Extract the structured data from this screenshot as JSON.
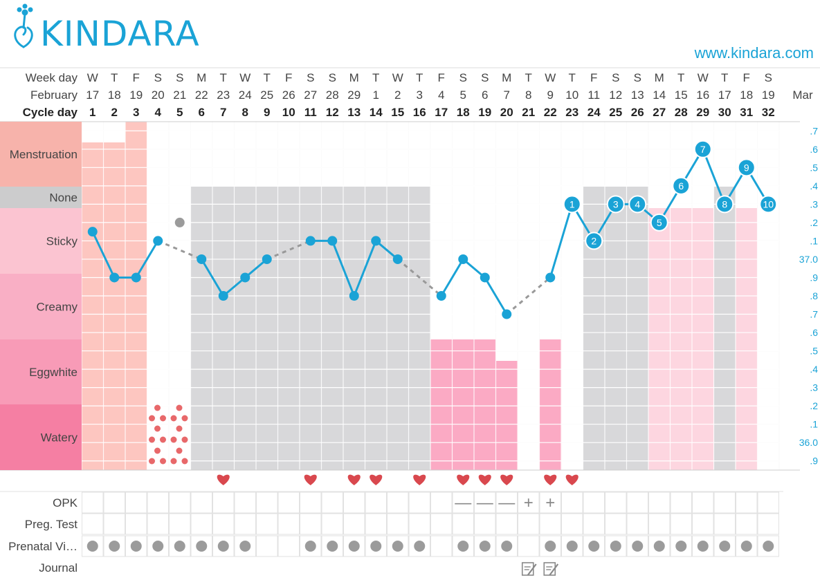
{
  "brand": {
    "name": "KINDARA",
    "url": "www.kindara.com",
    "color": "#1aa3d6"
  },
  "colors": {
    "temp_line": "#1aa3d6",
    "gray_band": "#d8d8da",
    "menstruation": "#fdc6c0",
    "fluid_pink": "#fbaac4",
    "light_pink": "#fdd6e0",
    "spotting": "#e8686a",
    "heart": "#d9484e",
    "pill_dot": "#9b9b9b"
  },
  "header": {
    "week_day_label": "Week day",
    "month_label": "February",
    "cycle_day_label": "Cycle day",
    "next_month_label": "Mar"
  },
  "rows": {
    "fluid_levels": [
      "Menstruation",
      "None",
      "Sticky",
      "Creamy",
      "Eggwhite",
      "Watery"
    ],
    "opk_label": "OPK",
    "preg_label": "Preg. Test",
    "prenatal_label": "Prenatal Vi…",
    "journal_label": "Journal"
  },
  "chart_data": {
    "type": "line",
    "week_days": [
      "W",
      "T",
      "F",
      "S",
      "S",
      "M",
      "T",
      "W",
      "T",
      "F",
      "S",
      "S",
      "M",
      "T",
      "W",
      "T",
      "F",
      "S",
      "S",
      "M",
      "T",
      "W",
      "T",
      "F",
      "S",
      "S",
      "M",
      "T",
      "W",
      "T",
      "F",
      "S"
    ],
    "dates": [
      "17",
      "18",
      "19",
      "20",
      "21",
      "22",
      "23",
      "24",
      "25",
      "26",
      "27",
      "28",
      "29",
      "1",
      "2",
      "3",
      "4",
      "5",
      "6",
      "7",
      "8",
      "9",
      "10",
      "11",
      "12",
      "13",
      "14",
      "15",
      "16",
      "17",
      "18",
      "19"
    ],
    "cycle_days": [
      "1",
      "2",
      "3",
      "4",
      "5",
      "6",
      "7",
      "8",
      "9",
      "10",
      "11",
      "12",
      "13",
      "14",
      "15",
      "16",
      "17",
      "18",
      "19",
      "20",
      "21",
      "22",
      "23",
      "24",
      "25",
      "26",
      "27",
      "28",
      "29",
      "30",
      "31",
      "32"
    ],
    "temp_axis_labels": [
      ".7",
      ".6",
      ".5",
      ".4",
      ".3",
      ".2",
      ".1",
      "37.0",
      ".9",
      ".8",
      ".7",
      ".6",
      ".5",
      ".4",
      ".3",
      ".2",
      ".1",
      "36.0",
      ".9"
    ],
    "ylim": [
      35.85,
      37.75
    ],
    "temperatures": [
      37.15,
      36.9,
      36.9,
      37.1,
      null,
      37.0,
      36.8,
      36.9,
      37.0,
      null,
      37.1,
      37.1,
      36.8,
      37.1,
      37.0,
      null,
      36.8,
      37.0,
      36.9,
      36.7,
      null,
      36.9,
      37.3,
      37.1,
      37.3,
      37.3,
      37.2,
      37.4,
      37.6,
      37.3,
      37.5,
      37.3
    ],
    "gray_point": {
      "day": 5,
      "temp": 37.2
    },
    "post_ovulation_labels": [
      {
        "day": 23,
        "label": "1"
      },
      {
        "day": 24,
        "label": "2"
      },
      {
        "day": 25,
        "label": "3"
      },
      {
        "day": 26,
        "label": "4"
      },
      {
        "day": 27,
        "label": "5"
      },
      {
        "day": 28,
        "label": "6"
      },
      {
        "day": 29,
        "label": "7"
      },
      {
        "day": 30,
        "label": "8"
      },
      {
        "day": 31,
        "label": "9"
      },
      {
        "day": 32,
        "label": "10"
      }
    ],
    "menstruation": [
      {
        "day": 1,
        "level": 0.7
      },
      {
        "day": 2,
        "level": 0.7
      },
      {
        "day": 3,
        "level": 1
      }
    ],
    "spotting_days": [
      4,
      5
    ],
    "fluid": [
      {
        "day": 17,
        "level": "Eggwhite"
      },
      {
        "day": 18,
        "level": "Eggwhite"
      },
      {
        "day": 19,
        "level": "Eggwhite"
      },
      {
        "day": 20,
        "level": "Eggwhite"
      },
      {
        "day": 22,
        "level": "Eggwhite"
      },
      {
        "day": 27,
        "level": "Sticky"
      },
      {
        "day": 28,
        "level": "Sticky"
      },
      {
        "day": 29,
        "level": "Sticky"
      },
      {
        "day": 31,
        "level": "Sticky"
      }
    ],
    "none_days": [
      6,
      7,
      8,
      9,
      10,
      11,
      12,
      13,
      14,
      15,
      16,
      24,
      25,
      26,
      30
    ],
    "intercourse_days": [
      7,
      11,
      13,
      14,
      16,
      18,
      19,
      20,
      22,
      23
    ],
    "opk": [
      {
        "day": 18,
        "result": "—"
      },
      {
        "day": 19,
        "result": "—"
      },
      {
        "day": 20,
        "result": "—"
      },
      {
        "day": 21,
        "result": "+"
      },
      {
        "day": 22,
        "result": "+"
      }
    ],
    "prenatal_days": [
      1,
      2,
      3,
      4,
      5,
      6,
      7,
      8,
      11,
      12,
      13,
      14,
      15,
      16,
      18,
      19,
      20,
      22,
      23,
      24,
      25,
      26,
      27,
      28,
      29,
      30,
      31,
      32
    ],
    "journal_days": [
      21,
      22
    ]
  }
}
